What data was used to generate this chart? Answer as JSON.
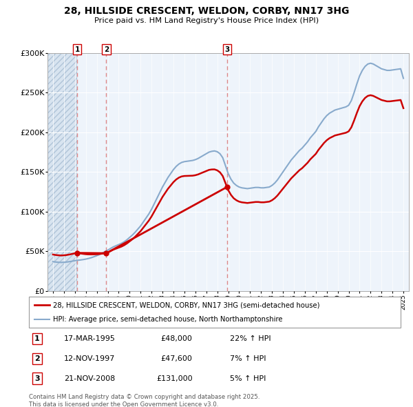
{
  "title": "28, HILLSIDE CRESCENT, WELDON, CORBY, NN17 3HG",
  "subtitle": "Price paid vs. HM Land Registry's House Price Index (HPI)",
  "legend_line1": "28, HILLSIDE CRESCENT, WELDON, CORBY, NN17 3HG (semi-detached house)",
  "legend_line2": "HPI: Average price, semi-detached house, North Northamptonshire",
  "footer": "Contains HM Land Registry data © Crown copyright and database right 2025.\nThis data is licensed under the Open Government Licence v3.0.",
  "transactions": [
    {
      "num": 1,
      "date": "17-MAR-1995",
      "price": 48000,
      "hpi_pct": "22% ↑ HPI",
      "year": 1995.21
    },
    {
      "num": 2,
      "date": "12-NOV-1997",
      "price": 47600,
      "hpi_pct": "7% ↑ HPI",
      "year": 1997.87
    },
    {
      "num": 3,
      "date": "21-NOV-2008",
      "price": 131000,
      "hpi_pct": "5% ↑ HPI",
      "year": 2008.89
    }
  ],
  "price_paid_color": "#cc0000",
  "hpi_color": "#88aacc",
  "dashed_line_color": "#dd8888",
  "hatch_color": "#d8e4f0",
  "light_blue_bg": "#eef4fb",
  "ylim": [
    0,
    300000
  ],
  "xlim_start": 1992.5,
  "xlim_end": 2025.5,
  "hpi_data_x": [
    1993.0,
    1993.25,
    1993.5,
    1993.75,
    1994.0,
    1994.25,
    1994.5,
    1994.75,
    1995.0,
    1995.25,
    1995.5,
    1995.75,
    1996.0,
    1996.25,
    1996.5,
    1996.75,
    1997.0,
    1997.25,
    1997.5,
    1997.75,
    1998.0,
    1998.25,
    1998.5,
    1998.75,
    1999.0,
    1999.25,
    1999.5,
    1999.75,
    2000.0,
    2000.25,
    2000.5,
    2000.75,
    2001.0,
    2001.25,
    2001.5,
    2001.75,
    2002.0,
    2002.25,
    2002.5,
    2002.75,
    2003.0,
    2003.25,
    2003.5,
    2003.75,
    2004.0,
    2004.25,
    2004.5,
    2004.75,
    2005.0,
    2005.25,
    2005.5,
    2005.75,
    2006.0,
    2006.25,
    2006.5,
    2006.75,
    2007.0,
    2007.25,
    2007.5,
    2007.75,
    2008.0,
    2008.25,
    2008.5,
    2008.75,
    2009.0,
    2009.25,
    2009.5,
    2009.75,
    2010.0,
    2010.25,
    2010.5,
    2010.75,
    2011.0,
    2011.25,
    2011.5,
    2011.75,
    2012.0,
    2012.25,
    2012.5,
    2012.75,
    2013.0,
    2013.25,
    2013.5,
    2013.75,
    2014.0,
    2014.25,
    2014.5,
    2014.75,
    2015.0,
    2015.25,
    2015.5,
    2015.75,
    2016.0,
    2016.25,
    2016.5,
    2016.75,
    2017.0,
    2017.25,
    2017.5,
    2017.75,
    2018.0,
    2018.25,
    2018.5,
    2018.75,
    2019.0,
    2019.25,
    2019.5,
    2019.75,
    2020.0,
    2020.25,
    2020.5,
    2020.75,
    2021.0,
    2021.25,
    2021.5,
    2021.75,
    2022.0,
    2022.25,
    2022.5,
    2022.75,
    2023.0,
    2023.25,
    2023.5,
    2023.75,
    2024.0,
    2024.25,
    2024.5,
    2024.75,
    2025.0
  ],
  "hpi_data_y": [
    37000,
    36500,
    36200,
    36000,
    36200,
    36500,
    37000,
    37600,
    38200,
    38700,
    39100,
    39600,
    40200,
    41000,
    42000,
    43200,
    44500,
    46000,
    47800,
    49500,
    51500,
    53500,
    55500,
    57000,
    58500,
    60000,
    62000,
    64500,
    67500,
    70500,
    74000,
    78000,
    82000,
    87000,
    92000,
    97000,
    103000,
    110000,
    117000,
    124000,
    131000,
    137000,
    143000,
    148000,
    153000,
    157000,
    160000,
    162000,
    163000,
    163500,
    164000,
    164500,
    165500,
    167000,
    169000,
    171000,
    173000,
    175000,
    176000,
    176500,
    175500,
    173000,
    168000,
    158000,
    148000,
    141000,
    136000,
    133000,
    131000,
    130000,
    129500,
    129000,
    129500,
    130000,
    130500,
    130500,
    130000,
    130000,
    130500,
    131000,
    133000,
    136000,
    140000,
    145000,
    150000,
    155000,
    160000,
    165000,
    169000,
    173000,
    177000,
    180000,
    184000,
    188000,
    193000,
    197000,
    201000,
    207000,
    212000,
    217000,
    221000,
    224000,
    226000,
    228000,
    229000,
    230000,
    231000,
    232000,
    234000,
    240000,
    250000,
    261000,
    271000,
    278000,
    283000,
    286000,
    287000,
    286000,
    284000,
    282000,
    280000,
    279000,
    278000,
    278000,
    278500,
    279000,
    279500,
    280000,
    268000
  ],
  "price_paid_data_x": [
    1995.21,
    1997.87,
    2008.89
  ],
  "price_paid_data_y": [
    48000,
    47600,
    131000
  ],
  "first_transaction_year": 1995.21
}
